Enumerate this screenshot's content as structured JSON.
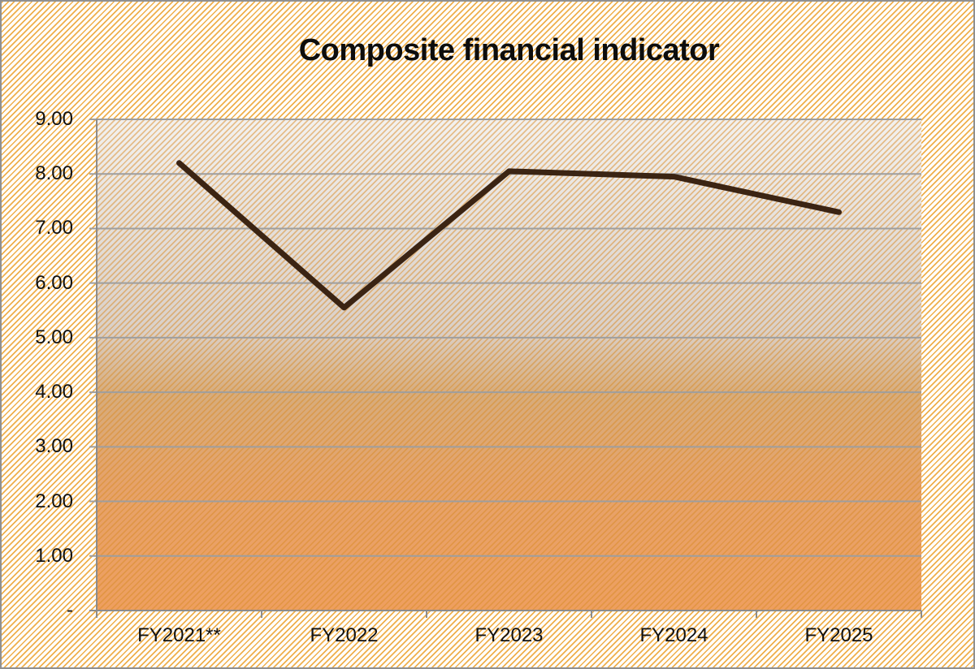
{
  "chart_data": {
    "type": "line",
    "title": "Composite financial indicator",
    "categories": [
      "FY2021**",
      "FY2022",
      "FY2023",
      "FY2024",
      "FY2025"
    ],
    "series": [
      {
        "name": "Composite financial indicator",
        "values": [
          8.2,
          5.55,
          8.05,
          7.95,
          7.3
        ]
      }
    ],
    "ylim": [
      0,
      9
    ],
    "y_tick_step": 1,
    "y_tick_labels_top_to_bottom": [
      "9.00",
      "8.00",
      "7.00",
      "6.00",
      "5.00",
      "4.00",
      "3.00",
      "2.00",
      "1.00",
      "-"
    ],
    "grid": true,
    "legend": "none",
    "colors": {
      "line": "#3B2413",
      "text": "#111111",
      "gridline": "#9E9E9E",
      "axis": "#8C8C8C",
      "page_border": "#909090",
      "hatch_stripe": "#EFAF4B",
      "hatch_background": "#FFFFFF",
      "plot_stripe_overlay": "#D98C28",
      "plot_gradient_top": "#F3F1EF",
      "plot_gradient_upper_mid": "#E3DDD8",
      "plot_gradient_gray_tan": "#DAD0C8",
      "plot_gradient_orange_tan": "#D7AC7C",
      "plot_gradient_lower_mid": "#E6A26A",
      "plot_gradient_bottom": "#EE9F60"
    }
  }
}
